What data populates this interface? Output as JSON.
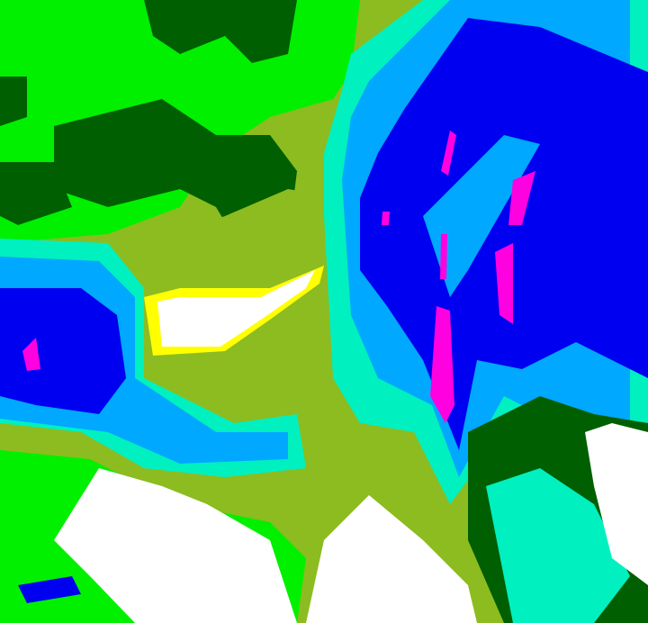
{
  "image": {
    "kind": "false-color satellite cloud classification",
    "palette": {
      "bright_green": "#00f000",
      "dark_green": "#005f00",
      "olive": "#8cbc20",
      "cyan": "#00f0c0",
      "light_blue": "#00a8ff",
      "blue": "#0000f0",
      "magenta": "#ff00e0",
      "white": "#ffffff",
      "yellow": "#ffff00"
    }
  }
}
